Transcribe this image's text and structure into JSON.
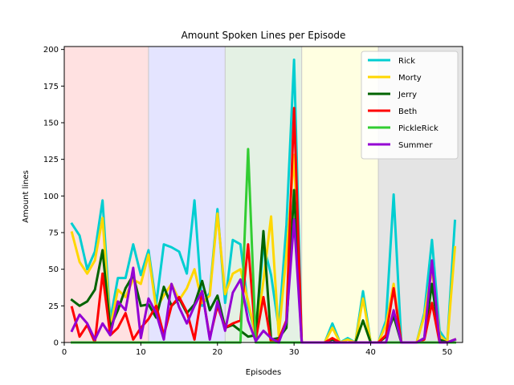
{
  "chart_data": {
    "type": "line",
    "title": "Amount Spoken Lines per Episode",
    "xlabel": "Episodes",
    "ylabel": "Amount lines",
    "xlim": [
      0,
      52
    ],
    "ylim": [
      0,
      202
    ],
    "x_ticks": [
      0,
      10,
      20,
      30,
      40,
      50
    ],
    "y_ticks": [
      0,
      25,
      50,
      75,
      100,
      125,
      150,
      175,
      200
    ],
    "grid": false,
    "legend_position": "top-right",
    "season_bands": [
      {
        "from": 0,
        "to": 11,
        "color": "#ffe1e1"
      },
      {
        "from": 11,
        "to": 21,
        "color": "#e4e4ff"
      },
      {
        "from": 21,
        "to": 31,
        "color": "#e4f1e4"
      },
      {
        "from": 31,
        "to": 41,
        "color": "#ffffe1"
      },
      {
        "from": 41,
        "to": 52,
        "color": "#e4e4e4"
      }
    ],
    "x": [
      1,
      2,
      3,
      4,
      5,
      6,
      7,
      8,
      9,
      10,
      11,
      12,
      13,
      14,
      15,
      16,
      17,
      18,
      19,
      20,
      21,
      22,
      23,
      24,
      25,
      26,
      27,
      28,
      29,
      30,
      31,
      32,
      33,
      34,
      35,
      36,
      37,
      38,
      39,
      40,
      41,
      42,
      43,
      44,
      45,
      46,
      47,
      48,
      49,
      50,
      51
    ],
    "series": [
      {
        "name": "Rick",
        "color": "#00ced1",
        "values": [
          81,
          73,
          50,
          62,
          97,
          15,
          44,
          44,
          67,
          46,
          63,
          26,
          67,
          65,
          62,
          47,
          97,
          25,
          34,
          91,
          27,
          70,
          67,
          24,
          5,
          67,
          46,
          10,
          80,
          193,
          0,
          0,
          0,
          0,
          13,
          0,
          3,
          0,
          35,
          0,
          0,
          15,
          101,
          0,
          0,
          0,
          20,
          70,
          8,
          0,
          83
        ]
      },
      {
        "name": "Morty",
        "color": "#ffd700",
        "values": [
          75,
          55,
          47,
          56,
          85,
          10,
          36,
          31,
          43,
          40,
          60,
          23,
          32,
          40,
          29,
          37,
          50,
          27,
          32,
          88,
          33,
          47,
          50,
          28,
          4,
          42,
          86,
          5,
          60,
          128,
          0,
          0,
          0,
          0,
          10,
          0,
          2,
          0,
          30,
          0,
          0,
          12,
          40,
          0,
          0,
          0,
          18,
          50,
          5,
          0,
          65
        ]
      },
      {
        "name": "Jerry",
        "color": "#006400",
        "values": [
          29,
          25,
          28,
          36,
          63,
          10,
          22,
          37,
          46,
          25,
          26,
          17,
          38,
          25,
          30,
          20,
          26,
          42,
          22,
          32,
          10,
          12,
          8,
          4,
          5,
          76,
          2,
          3,
          10,
          104,
          0,
          0,
          0,
          0,
          2,
          0,
          0,
          0,
          15,
          0,
          0,
          4,
          18,
          0,
          0,
          0,
          3,
          40,
          2,
          0,
          2
        ]
      },
      {
        "name": "Beth",
        "color": "#ff0000",
        "values": [
          24,
          4,
          12,
          0,
          47,
          5,
          10,
          20,
          2,
          10,
          16,
          25,
          5,
          25,
          31,
          21,
          2,
          35,
          3,
          25,
          10,
          13,
          15,
          67,
          2,
          31,
          0,
          2,
          15,
          160,
          0,
          0,
          0,
          0,
          3,
          0,
          0,
          0,
          0,
          0,
          0,
          5,
          37,
          0,
          0,
          0,
          2,
          27,
          0,
          0,
          2
        ]
      },
      {
        "name": "PickleRick",
        "color": "#32cd32",
        "values": [
          0,
          0,
          0,
          0,
          0,
          0,
          0,
          0,
          0,
          0,
          0,
          0,
          0,
          0,
          0,
          0,
          0,
          0,
          0,
          0,
          0,
          0,
          0,
          132,
          0,
          0,
          0,
          0,
          0,
          0,
          0,
          0,
          0,
          0,
          0,
          0,
          0,
          0,
          0,
          0,
          0,
          0,
          0,
          0,
          0,
          0,
          0,
          0,
          0,
          0,
          0
        ]
      },
      {
        "name": "Summer",
        "color": "#9400d3",
        "values": [
          8,
          19,
          13,
          2,
          13,
          5,
          28,
          22,
          51,
          3,
          30,
          20,
          2,
          40,
          24,
          13,
          25,
          35,
          2,
          28,
          8,
          34,
          43,
          15,
          1,
          8,
          3,
          0,
          14,
          84,
          0,
          0,
          0,
          0,
          0,
          0,
          0,
          0,
          0,
          0,
          0,
          0,
          22,
          0,
          0,
          0,
          3,
          56,
          0,
          0,
          2
        ]
      }
    ]
  }
}
